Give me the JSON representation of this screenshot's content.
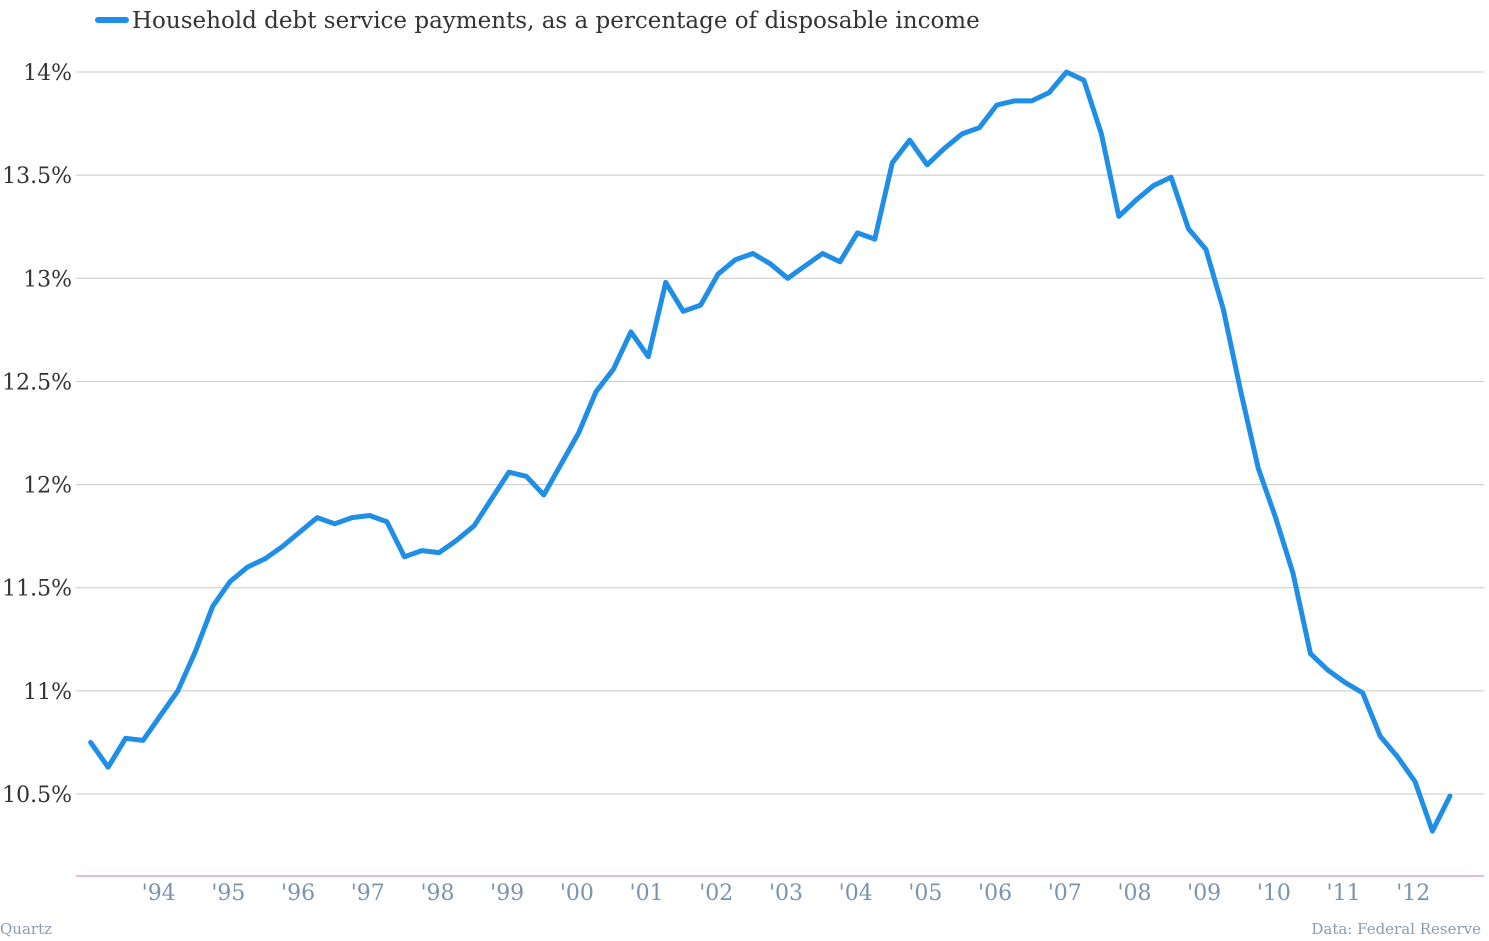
{
  "chart_data": {
    "type": "line",
    "title": "",
    "xlabel": "",
    "ylabel": "",
    "series": [
      {
        "name": "Household debt service payments, as a percentage of disposable income",
        "color": "#1f8ee6",
        "x": [
          1993.0,
          1993.25,
          1993.5,
          1993.75,
          1994.0,
          1994.25,
          1994.5,
          1994.75,
          1995.0,
          1995.25,
          1995.5,
          1995.75,
          1996.0,
          1996.25,
          1996.5,
          1996.75,
          1997.0,
          1997.25,
          1997.5,
          1997.75,
          1998.0,
          1998.25,
          1998.5,
          1998.75,
          1999.0,
          1999.25,
          1999.5,
          1999.75,
          2000.0,
          2000.25,
          2000.5,
          2000.75,
          2001.0,
          2001.25,
          2001.5,
          2001.75,
          2002.0,
          2002.25,
          2002.5,
          2002.75,
          2003.0,
          2003.25,
          2003.5,
          2003.75,
          2004.0,
          2004.25,
          2004.5,
          2004.75,
          2005.0,
          2005.25,
          2005.5,
          2005.75,
          2006.0,
          2006.25,
          2006.5,
          2006.75,
          2007.0,
          2007.25,
          2007.5,
          2007.75,
          2008.0,
          2008.25,
          2008.5,
          2008.75,
          2009.0,
          2009.25,
          2009.5,
          2009.75,
          2010.0,
          2010.25,
          2010.5,
          2010.75,
          2011.0,
          2011.25,
          2011.5,
          2011.75,
          2012.0,
          2012.25,
          2012.5,
          2012.75
        ],
        "y": [
          10.75,
          10.63,
          10.77,
          10.76,
          10.88,
          11.0,
          11.19,
          11.41,
          11.53,
          11.6,
          11.64,
          11.7,
          11.77,
          11.84,
          11.81,
          11.84,
          11.85,
          11.82,
          11.65,
          11.68,
          11.67,
          11.73,
          11.8,
          11.93,
          12.06,
          12.04,
          11.95,
          12.1,
          12.25,
          12.45,
          12.56,
          12.74,
          12.62,
          12.98,
          12.84,
          12.87,
          13.02,
          13.09,
          13.12,
          13.07,
          13.0,
          13.06,
          13.12,
          13.08,
          13.22,
          13.19,
          13.56,
          13.67,
          13.55,
          13.63,
          13.7,
          13.73,
          13.84,
          13.86,
          13.86,
          13.9,
          14.0,
          13.96,
          13.7,
          13.3,
          13.38,
          13.45,
          13.49,
          13.24,
          13.14,
          12.85,
          12.45,
          12.08,
          11.84,
          11.57,
          11.18,
          11.1,
          11.04,
          10.99,
          10.78,
          10.68,
          10.56,
          10.32,
          10.49,
          null
        ]
      }
    ],
    "y_ticks": [
      "14%",
      "13.5%",
      "13%",
      "12.5%",
      "12%",
      "11.5%",
      "11%",
      "10.5%"
    ],
    "y_tick_values": [
      14,
      13.5,
      13,
      12.5,
      12,
      11.5,
      11,
      10.5
    ],
    "ylim": [
      10.1,
      14.1
    ],
    "x_ticks": [
      "'94",
      "'95",
      "'96",
      "'97",
      "'98",
      "'99",
      "'00",
      "'01",
      "'02",
      "'03",
      "'04",
      "'05",
      "'06",
      "'07",
      "'08",
      "'09",
      "'10",
      "'11",
      "'12"
    ],
    "x_tick_values": [
      1994,
      1995,
      1996,
      1997,
      1998,
      1999,
      2000,
      2001,
      2002,
      2003,
      2004,
      2005,
      2006,
      2007,
      2008,
      2009,
      2010,
      2011,
      2012
    ],
    "xlim": [
      1993.0,
      2013.0
    ],
    "grid": true,
    "legend": "top-left"
  },
  "footer": {
    "source_left": "Quartz",
    "source_right": "Data: Federal Reserve"
  },
  "colors": {
    "line": "#1f8ee6",
    "grid": "#c8c8c8",
    "baseline": "#d9a6c9",
    "x_tick_text": "#7b93ad",
    "y_tick_text": "#333333"
  }
}
